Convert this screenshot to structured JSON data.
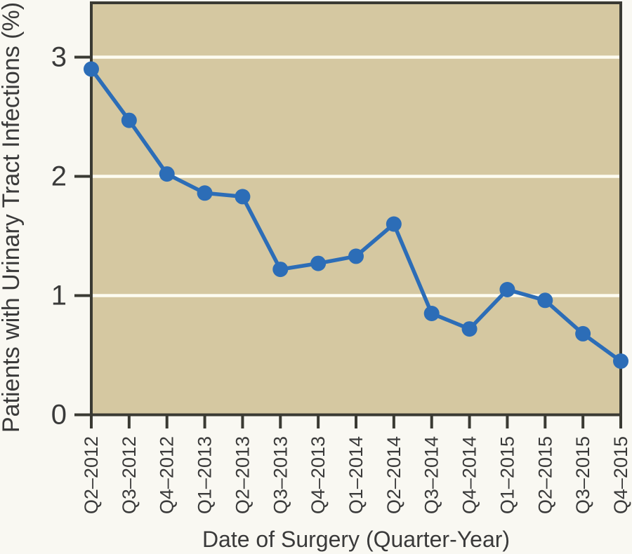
{
  "chart_data": {
    "type": "line",
    "title": "",
    "xlabel": "Date of Surgery (Quarter-Year)",
    "ylabel": "Patients with Urinary Tract Infections (%)",
    "categories": [
      "Q2–2012",
      "Q3–2012",
      "Q4–2012",
      "Q1–2013",
      "Q2–2013",
      "Q3–2013",
      "Q4–2013",
      "Q1–2014",
      "Q2–2014",
      "Q3–2014",
      "Q4–2014",
      "Q1–2015",
      "Q2–2015",
      "Q3–2015",
      "Q4–2015"
    ],
    "series": [
      {
        "name": "Patients with Urinary Tract Infections (%)",
        "values": [
          2.9,
          2.47,
          2.02,
          1.86,
          1.83,
          1.22,
          1.27,
          1.33,
          1.6,
          0.85,
          0.72,
          1.05,
          0.96,
          0.68,
          0.45
        ]
      }
    ],
    "yticks": [
      0,
      1,
      2,
      3
    ],
    "ylim": [
      0,
      3.46
    ],
    "grid": "horizontal",
    "legend": "none",
    "marker": "circle",
    "colors": {
      "line": "#2c6db7",
      "marker": "#2c6db7",
      "plot_background": "#d5c8a1",
      "gridline": "#fdfcf0",
      "axis": "#3a3a33",
      "text": "#3a3a3a",
      "page_background": "#f9f8f2"
    }
  }
}
